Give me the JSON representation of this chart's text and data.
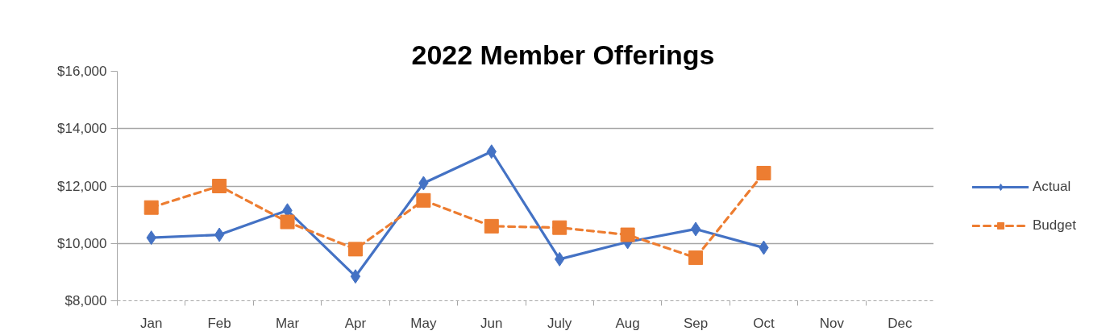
{
  "chart_data": {
    "type": "line",
    "title": "2022 Member Offerings",
    "categories": [
      "Jan",
      "Feb",
      "Mar",
      "Apr",
      "May",
      "Jun",
      "July",
      "Aug",
      "Sep",
      "Oct",
      "Nov",
      "Dec"
    ],
    "series": [
      {
        "name": "Actual",
        "color": "#4472c4",
        "marker": "diamond",
        "line_style": "solid",
        "values": [
          10200,
          10300,
          11150,
          8850,
          12100,
          13200,
          9450,
          10050,
          10500,
          9850,
          null,
          null
        ]
      },
      {
        "name": "Budget",
        "color": "#ed7d31",
        "marker": "square",
        "line_style": "dashed",
        "values": [
          11250,
          12000,
          10750,
          9800,
          11500,
          10600,
          10550,
          10300,
          9500,
          12450,
          null,
          null
        ]
      }
    ],
    "ylim": [
      8000,
      16000
    ],
    "yticks": [
      {
        "value": 8000,
        "label": "$8,000"
      },
      {
        "value": 10000,
        "label": "$10,000"
      },
      {
        "value": 12000,
        "label": "$12,000"
      },
      {
        "value": 14000,
        "label": "$14,000"
      },
      {
        "value": 16000,
        "label": "$16,000"
      }
    ],
    "grid": "y",
    "legend": "right"
  }
}
